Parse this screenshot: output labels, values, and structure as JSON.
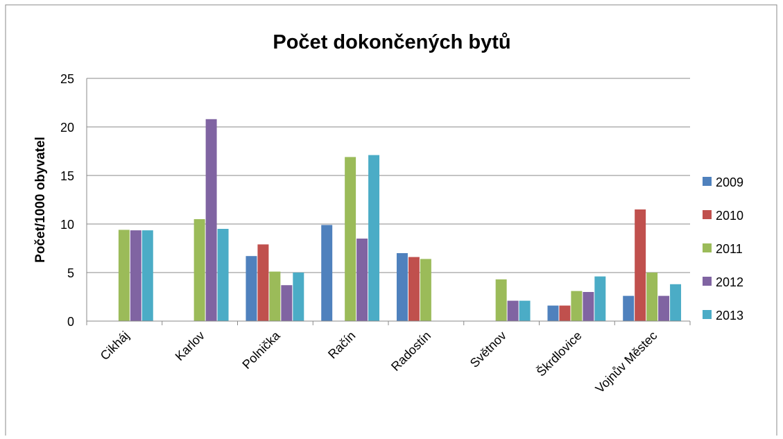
{
  "chart_data": {
    "type": "bar",
    "title": "Počet dokončených bytů",
    "y_label": "Počet/1000 obyvatel",
    "categories": [
      "Cikháj",
      "Karlov",
      "Polnička",
      "Račín",
      "Radostín",
      "Světnov",
      "Škrdlovice",
      "Vojnův Městec"
    ],
    "series": [
      {
        "name": "2009",
        "color": "#4f81bd",
        "values": [
          0,
          0,
          6.7,
          9.9,
          7.0,
          0,
          1.6,
          2.6
        ]
      },
      {
        "name": "2010",
        "color": "#c0504d",
        "values": [
          0,
          0,
          7.9,
          0,
          6.6,
          0,
          1.6,
          11.5
        ]
      },
      {
        "name": "2011",
        "color": "#9bbb59",
        "values": [
          9.4,
          10.5,
          5.1,
          16.9,
          6.4,
          4.3,
          3.1,
          5.0
        ]
      },
      {
        "name": "2012",
        "color": "#8064a2",
        "values": [
          9.35,
          20.8,
          3.7,
          8.5,
          0,
          2.1,
          3.0,
          2.6
        ]
      },
      {
        "name": "2013",
        "color": "#4bacc6",
        "values": [
          9.35,
          9.5,
          5.0,
          17.1,
          0,
          2.1,
          4.6,
          3.8
        ]
      }
    ],
    "ylim": [
      0,
      25
    ],
    "yticks": [
      0,
      5,
      10,
      15,
      20,
      25
    ],
    "grid": true,
    "legend": "right"
  }
}
